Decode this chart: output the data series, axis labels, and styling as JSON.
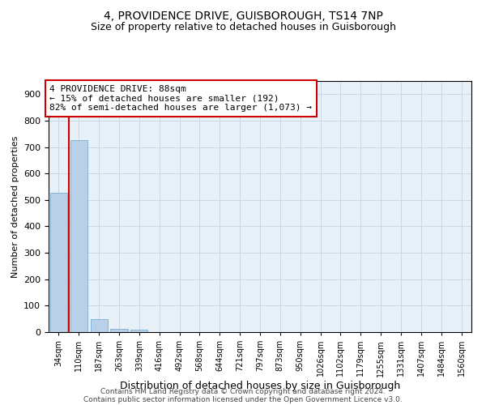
{
  "title1": "4, PROVIDENCE DRIVE, GUISBOROUGH, TS14 7NP",
  "title2": "Size of property relative to detached houses in Guisborough",
  "xlabel": "Distribution of detached houses by size in Guisborough",
  "ylabel": "Number of detached properties",
  "categories": [
    "34sqm",
    "110sqm",
    "187sqm",
    "263sqm",
    "339sqm",
    "416sqm",
    "492sqm",
    "568sqm",
    "644sqm",
    "721sqm",
    "797sqm",
    "873sqm",
    "950sqm",
    "1026sqm",
    "1102sqm",
    "1179sqm",
    "1255sqm",
    "1331sqm",
    "1407sqm",
    "1484sqm",
    "1560sqm"
  ],
  "values": [
    528,
    726,
    50,
    13,
    9,
    0,
    0,
    0,
    0,
    0,
    0,
    0,
    0,
    0,
    0,
    0,
    0,
    0,
    0,
    0,
    0
  ],
  "bar_color": "#b8d0e8",
  "bar_edge_color": "#7aafd4",
  "vline_x": 0.5,
  "vline_color": "#cc0000",
  "annotation_text": "4 PROVIDENCE DRIVE: 88sqm\n← 15% of detached houses are smaller (192)\n82% of semi-detached houses are larger (1,073) →",
  "annotation_box_color": "#cc0000",
  "ylim": [
    0,
    950
  ],
  "yticks": [
    0,
    100,
    200,
    300,
    400,
    500,
    600,
    700,
    800,
    900
  ],
  "grid_color": "#c8d8e8",
  "footer1": "Contains HM Land Registry data © Crown copyright and database right 2024.",
  "footer2": "Contains public sector information licensed under the Open Government Licence v3.0.",
  "bg_color": "#e8f0f8",
  "title1_fontsize": 10,
  "title2_fontsize": 9,
  "xlabel_fontsize": 9,
  "ylabel_fontsize": 8,
  "tick_fontsize": 8,
  "xtick_fontsize": 7,
  "annotation_fontsize": 8,
  "footer_fontsize": 6.5
}
